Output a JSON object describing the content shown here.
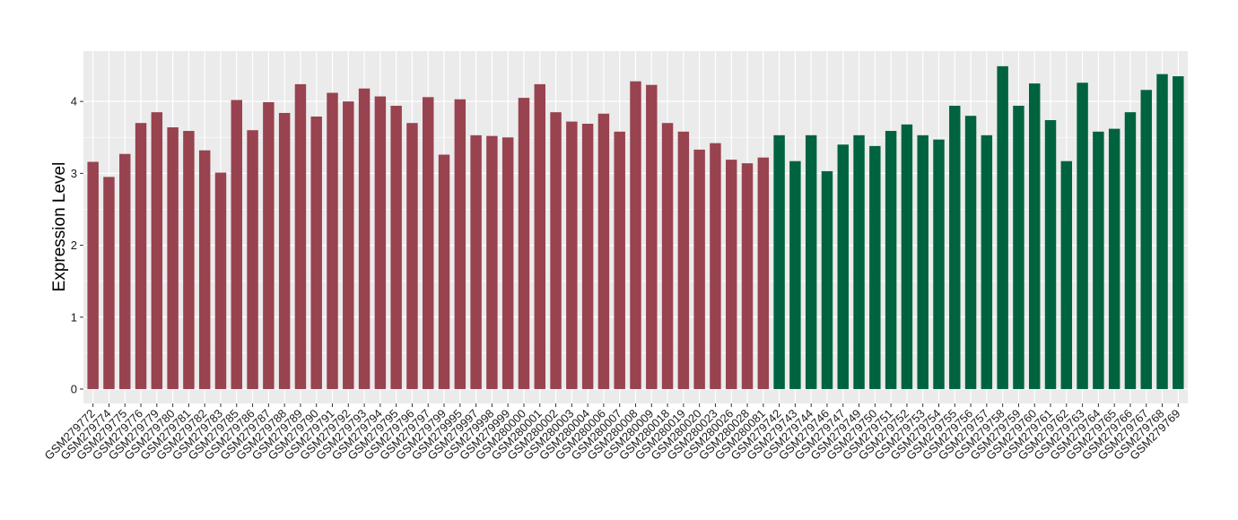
{
  "chart_data": {
    "type": "bar",
    "ylabel": "Expression Level",
    "xlabel": "",
    "ylim": [
      -0.2,
      4.7
    ],
    "yticks": [
      0,
      1,
      2,
      3,
      4
    ],
    "ytick_labels": [
      "0",
      "1",
      "2",
      "3",
      "4"
    ],
    "grid": true,
    "colors": {
      "group_a": "#98434f",
      "group_b": "#006340",
      "panel_bg": "#ebebeb",
      "grid": "#ffffff"
    },
    "categories": [
      "GSM279772",
      "GSM279774",
      "GSM279775",
      "GSM279776",
      "GSM279779",
      "GSM279780",
      "GSM279781",
      "GSM279782",
      "GSM279783",
      "GSM279785",
      "GSM279786",
      "GSM279787",
      "GSM279788",
      "GSM279789",
      "GSM279790",
      "GSM279791",
      "GSM279792",
      "GSM279793",
      "GSM279794",
      "GSM279795",
      "GSM279796",
      "GSM279797",
      "GSM279799",
      "GSM279995",
      "GSM279997",
      "GSM279998",
      "GSM279999",
      "GSM280000",
      "GSM280001",
      "GSM280002",
      "GSM280003",
      "GSM280004",
      "GSM280006",
      "GSM280007",
      "GSM280008",
      "GSM280009",
      "GSM280018",
      "GSM280019",
      "GSM280020",
      "GSM280023",
      "GSM280026",
      "GSM280028",
      "GSM280081",
      "GSM279742",
      "GSM279743",
      "GSM279744",
      "GSM279746",
      "GSM279747",
      "GSM279749",
      "GSM279750",
      "GSM279751",
      "GSM279752",
      "GSM279753",
      "GSM279754",
      "GSM279755",
      "GSM279756",
      "GSM279757",
      "GSM279758",
      "GSM279759",
      "GSM279760",
      "GSM279761",
      "GSM279762",
      "GSM279763",
      "GSM279764",
      "GSM279765",
      "GSM279766",
      "GSM279767",
      "GSM279768",
      "GSM279769"
    ],
    "values": [
      3.16,
      2.95,
      3.27,
      3.7,
      3.85,
      3.64,
      3.59,
      3.32,
      3.01,
      4.02,
      3.6,
      3.99,
      3.84,
      4.24,
      3.79,
      4.12,
      4.0,
      4.18,
      4.07,
      3.94,
      3.7,
      4.06,
      3.26,
      4.03,
      3.53,
      3.52,
      3.5,
      4.05,
      4.24,
      3.85,
      3.72,
      3.69,
      3.83,
      3.58,
      4.28,
      4.23,
      3.7,
      3.58,
      3.33,
      3.42,
      3.19,
      3.14,
      3.22,
      3.53,
      3.17,
      3.53,
      3.03,
      3.4,
      3.53,
      3.38,
      3.59,
      3.68,
      3.53,
      3.47,
      3.94,
      3.8,
      3.53,
      4.49,
      3.94,
      4.25,
      3.74,
      3.17,
      4.26,
      3.58,
      3.62,
      3.85,
      4.16,
      4.38,
      4.35
    ],
    "groups": [
      "a",
      "a",
      "a",
      "a",
      "a",
      "a",
      "a",
      "a",
      "a",
      "a",
      "a",
      "a",
      "a",
      "a",
      "a",
      "a",
      "a",
      "a",
      "a",
      "a",
      "a",
      "a",
      "a",
      "a",
      "a",
      "a",
      "a",
      "a",
      "a",
      "a",
      "a",
      "a",
      "a",
      "a",
      "a",
      "a",
      "a",
      "a",
      "a",
      "a",
      "a",
      "a",
      "a",
      "b",
      "b",
      "b",
      "b",
      "b",
      "b",
      "b",
      "b",
      "b",
      "b",
      "b",
      "b",
      "b",
      "b",
      "b",
      "b",
      "b",
      "b",
      "b",
      "b",
      "b",
      "b",
      "b",
      "b",
      "b",
      "b"
    ]
  }
}
